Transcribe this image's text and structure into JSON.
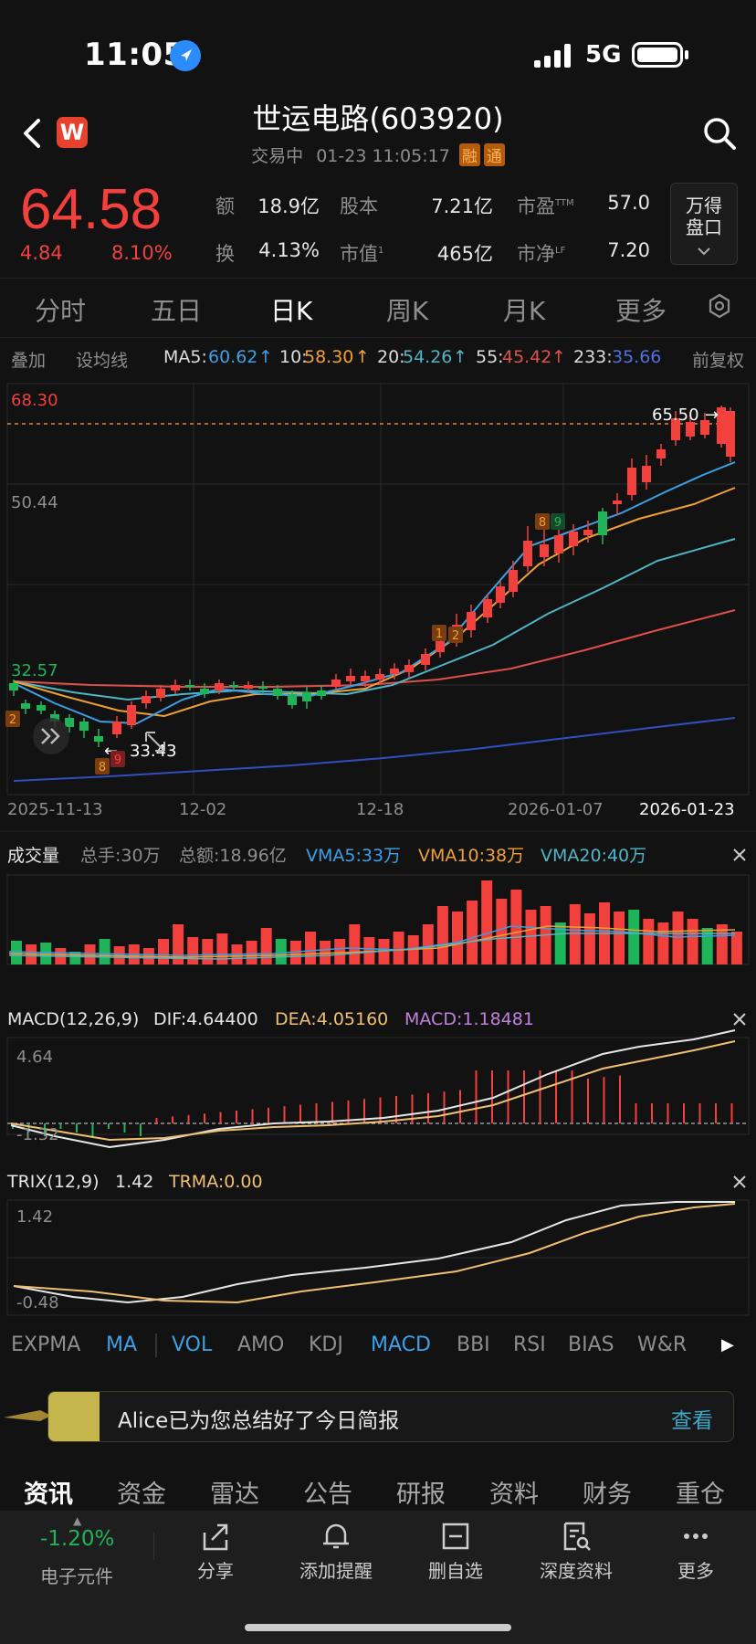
{
  "status": {
    "time": "11:05",
    "network": "5G"
  },
  "header": {
    "title": "世运电路(603920)",
    "status": "交易中",
    "datetime": "01-23 11:05:17",
    "tags": [
      "融",
      "通"
    ]
  },
  "quote": {
    "price": "64.58",
    "change": "4.84",
    "change_pct": "8.10%",
    "fields": [
      {
        "label": "额",
        "value": "18.9亿"
      },
      {
        "label": "股本",
        "value": "7.21亿"
      },
      {
        "label": "市盈",
        "sup": "TTM",
        "value": "57.0"
      },
      {
        "label": "换",
        "value": "4.13%"
      },
      {
        "label": "市值",
        "sup": "1",
        "value": "465亿"
      },
      {
        "label": "市净",
        "sup": "LF",
        "value": "7.20"
      }
    ],
    "pankou_label_1": "万得",
    "pankou_label_2": "盘口"
  },
  "tabs": [
    "分时",
    "五日",
    "日K",
    "周K",
    "月K",
    "更多"
  ],
  "ma_row": {
    "overlay": "叠加",
    "set_ma": "设均线",
    "ma5_label": "MA5:",
    "ma5": "60.62",
    "ma10_label": "10:",
    "ma10": "58.30",
    "ma20_label": "20:",
    "ma20": "54.26",
    "ma55_label": "55:",
    "ma55": "45.42",
    "ma233_label": "233:",
    "ma233": "35.66",
    "adjust": "前复权"
  },
  "kline": {
    "max_label": "68.30",
    "mid_label": "50.44",
    "min_label": "32.57",
    "high_marker": "65.50",
    "low_marker": "33.43",
    "dates": [
      "2025-11-13",
      "12-02",
      "12-18",
      "2026-01-07",
      "2026-01-23"
    ],
    "badges": [
      "2",
      "8",
      "9",
      "1",
      "2",
      "8",
      "9"
    ]
  },
  "volume": {
    "title": "成交量",
    "total_hands": "总手:30万",
    "total_amount": "总额:18.96亿",
    "vma5": "VMA5:33万",
    "vma10": "VMA10:38万",
    "vma20": "VMA20:40万"
  },
  "macd": {
    "title": "MACD(12,26,9)",
    "dif": "DIF:4.64400",
    "dea": "DEA:4.05160",
    "macd": "MACD:1.18481",
    "top": "4.64",
    "bottom": "-1.32"
  },
  "trix": {
    "title": "TRIX(12,9)",
    "value": "1.42",
    "trma": "TRMA:0.00",
    "top": "1.42",
    "bottom": "-0.48"
  },
  "indicators": [
    "EXPMA",
    "MA",
    "VOL",
    "AMO",
    "KDJ",
    "MACD",
    "BBI",
    "RSI",
    "BIAS",
    "W&R"
  ],
  "banner": {
    "text": "Alice已为您总结好了今日简报",
    "action": "查看"
  },
  "bottom_tabs": [
    "资讯",
    "资金",
    "雷达",
    "公告",
    "研报",
    "资料",
    "财务",
    "重仓"
  ],
  "toolbar": {
    "sector_change": "-1.20%",
    "sector_name": "电子元件",
    "share": "分享",
    "alert": "添加提醒",
    "remove": "删自选",
    "deep": "深度资料",
    "more": "更多"
  },
  "colors": {
    "up": "#f2403c",
    "down": "#1fb35a",
    "ma5": "#3aa0e8",
    "ma10": "#f0a030",
    "ma20": "#4db6c8",
    "ma55": "#e0504a",
    "ma233": "#3050c0"
  }
}
